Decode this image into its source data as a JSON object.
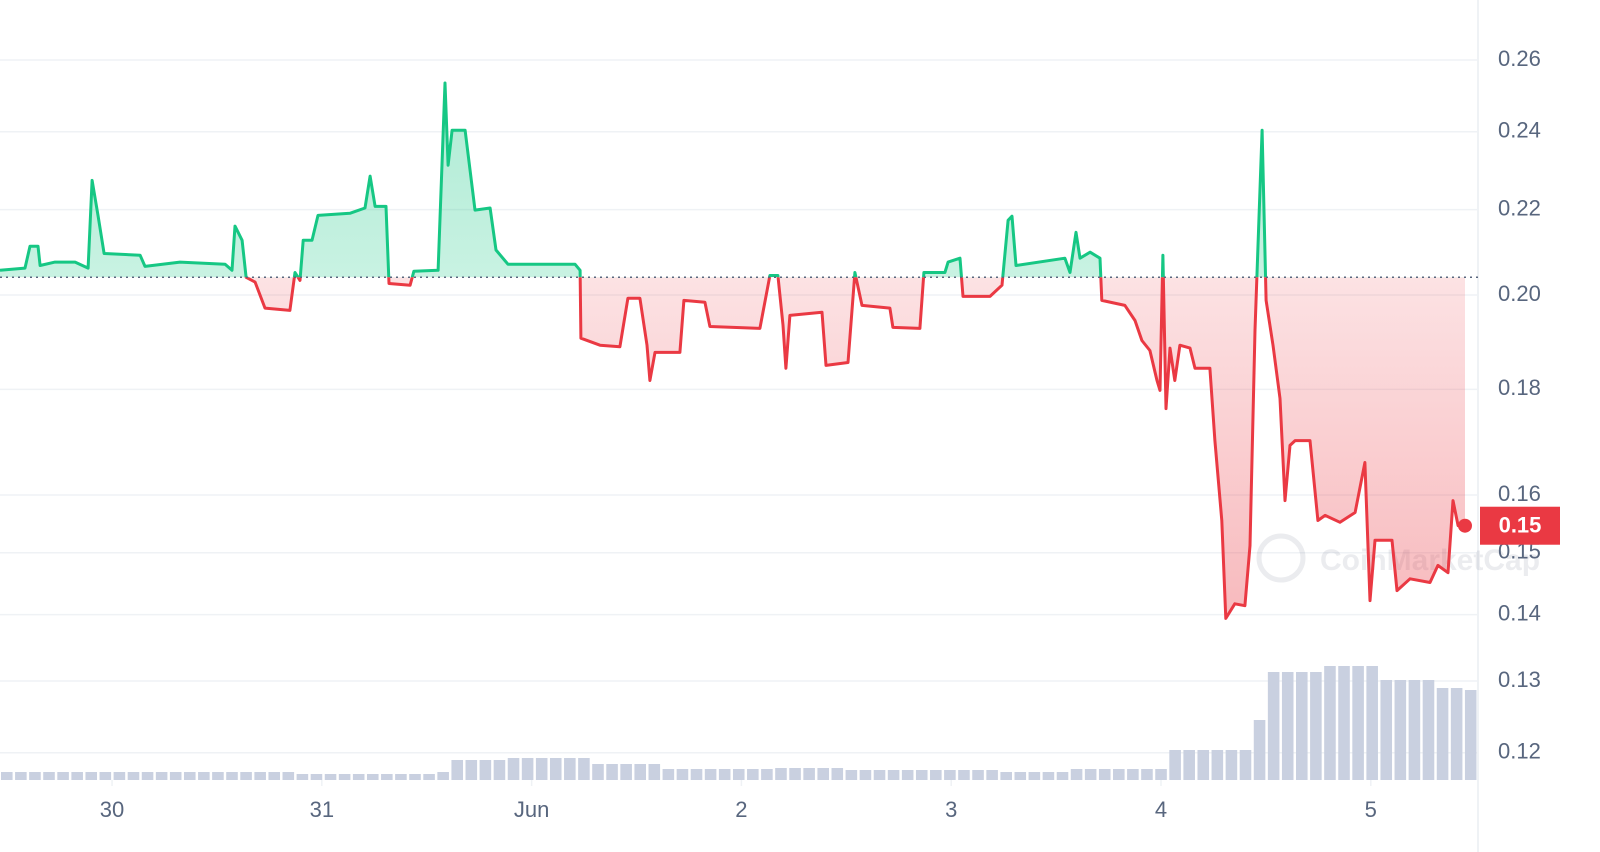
{
  "chart_data": {
    "type": "line",
    "x": [
      29.466,
      29.585,
      29.609,
      29.647,
      29.657,
      29.728,
      29.824,
      29.886,
      29.905,
      29.933,
      29.962,
      30.134,
      30.157,
      30.324,
      30.539,
      30.572,
      30.586,
      30.62,
      30.639,
      30.682,
      30.729,
      30.848,
      30.872,
      30.896,
      30.911,
      30.953,
      30.982,
      31.134,
      31.206,
      31.23,
      31.254,
      31.306,
      31.32,
      31.421,
      31.439,
      31.554,
      31.587,
      31.602,
      31.621,
      31.683,
      31.73,
      31.802,
      31.83,
      31.887,
      32.207,
      32.231,
      32.235,
      32.326,
      32.421,
      32.459,
      32.516,
      32.55,
      32.564,
      32.588,
      32.707,
      32.726,
      32.826,
      32.85,
      33.088,
      33.136,
      33.174,
      33.198,
      33.212,
      33.231,
      33.384,
      33.403,
      33.508,
      33.541,
      33.575,
      33.708,
      33.722,
      33.851,
      33.87,
      33.97,
      33.985,
      34.042,
      34.056,
      34.185,
      34.242,
      34.271,
      34.29,
      34.309,
      34.542,
      34.566,
      34.595,
      34.614,
      34.662,
      34.709,
      34.718,
      34.828,
      34.876,
      34.909,
      34.947,
      34.981,
      34.995,
      35.009,
      35.024,
      35.043,
      35.066,
      35.09,
      35.138,
      35.162,
      35.233,
      35.257,
      35.29,
      35.309,
      35.352,
      35.4,
      35.424,
      35.448,
      35.482,
      35.501,
      35.534,
      35.567,
      35.591,
      35.615,
      35.639,
      35.71,
      35.748,
      35.782,
      35.853,
      35.925,
      35.972,
      35.996,
      36.02,
      36.101,
      36.125,
      36.187,
      36.282,
      36.32,
      36.368,
      36.392,
      36.416,
      36.449
    ],
    "values": [
      0.2056,
      0.2061,
      0.2112,
      0.2112,
      0.2067,
      0.2075,
      0.2075,
      0.2061,
      0.2273,
      0.2186,
      0.2095,
      0.2091,
      0.2065,
      0.2075,
      0.207,
      0.2056,
      0.216,
      0.2126,
      0.204,
      0.2029,
      0.1971,
      0.1966,
      0.2051,
      0.2033,
      0.2126,
      0.2126,
      0.2186,
      0.2191,
      0.2204,
      0.2284,
      0.2208,
      0.2208,
      0.2026,
      0.2022,
      0.2054,
      0.2056,
      0.2534,
      0.2312,
      0.2404,
      0.2404,
      0.2199,
      0.2204,
      0.2103,
      0.207,
      0.207,
      0.2056,
      0.1906,
      0.1891,
      0.1888,
      0.1993,
      0.1993,
      0.1891,
      0.1818,
      0.1876,
      0.1876,
      0.1988,
      0.1984,
      0.1931,
      0.1927,
      0.2044,
      0.2044,
      0.1934,
      0.1843,
      0.1955,
      0.1962,
      0.1849,
      0.1855,
      0.2051,
      0.1977,
      0.1971,
      0.1929,
      0.1927,
      0.2051,
      0.2051,
      0.2075,
      0.2084,
      0.1997,
      0.1997,
      0.2022,
      0.2174,
      0.2184,
      0.2067,
      0.2084,
      0.2051,
      0.2145,
      0.2084,
      0.2098,
      0.2084,
      0.1988,
      0.1977,
      0.1944,
      0.1901,
      0.188,
      0.1818,
      0.1798,
      0.2091,
      0.1762,
      0.1885,
      0.1818,
      0.1891,
      0.1885,
      0.1843,
      0.1843,
      0.17,
      0.1555,
      0.1394,
      0.1417,
      0.1414,
      0.1512,
      0.1923,
      0.2404,
      0.1988,
      0.1891,
      0.1782,
      0.159,
      0.1691,
      0.17,
      0.17,
      0.1555,
      0.1564,
      0.1552,
      0.1569,
      0.1659,
      0.1422,
      0.1521,
      0.1521,
      0.1438,
      0.1457,
      0.1451,
      0.1479,
      0.1467,
      0.159,
      0.1546,
      0.1546
    ],
    "colors": {
      "up": "#16c784",
      "down": "#ea3943"
    },
    "baseline": 0.204,
    "current_price": {
      "value": 0.1546,
      "label": "0.15"
    },
    "volume": {
      "axis": "y2",
      "color": "#c9d0e0",
      "values": [
        8,
        8,
        8,
        8,
        8,
        8,
        8,
        8,
        8,
        8,
        8,
        8,
        8,
        8,
        8,
        8,
        8,
        8,
        8,
        8,
        8,
        6,
        6,
        6,
        6,
        6,
        6,
        6,
        6,
        6,
        6,
        8,
        20,
        20,
        20,
        20,
        22,
        22,
        22,
        22,
        22,
        22,
        16,
        16,
        16,
        16,
        16,
        11,
        11,
        11,
        11,
        11,
        11,
        11,
        11,
        12,
        12,
        12,
        12,
        12,
        10,
        10,
        10,
        10,
        10,
        10,
        10,
        10,
        10,
        10,
        10,
        8,
        8,
        8,
        8,
        8,
        11,
        11,
        11,
        11,
        11,
        11,
        11,
        30,
        30,
        30,
        30,
        30,
        30,
        60,
        108,
        108,
        108,
        108,
        114,
        114,
        114,
        114,
        100,
        100,
        100,
        100,
        92,
        92,
        90
      ]
    },
    "y2lim": [
      0,
      780
    ],
    "xlim": [
      29.466,
      36.511
    ],
    "xticks": [
      30,
      31,
      {
        "value": 32,
        "label": "Jun"
      },
      {
        "value": 33,
        "label": "2"
      },
      {
        "value": 34,
        "label": "3"
      },
      {
        "value": 35,
        "label": "4"
      },
      {
        "value": 36,
        "label": "5"
      }
    ],
    "ylim": [
      0.1164,
      0.278
    ],
    "yticks": [
      0.12,
      0.13,
      0.14,
      0.15,
      0.16,
      0.18,
      {
        "value": 0.2,
        "label": "0.20"
      },
      0.22,
      0.24,
      0.26
    ],
    "log_scale": true,
    "grid": true,
    "watermark": "CoinMarketCap"
  }
}
